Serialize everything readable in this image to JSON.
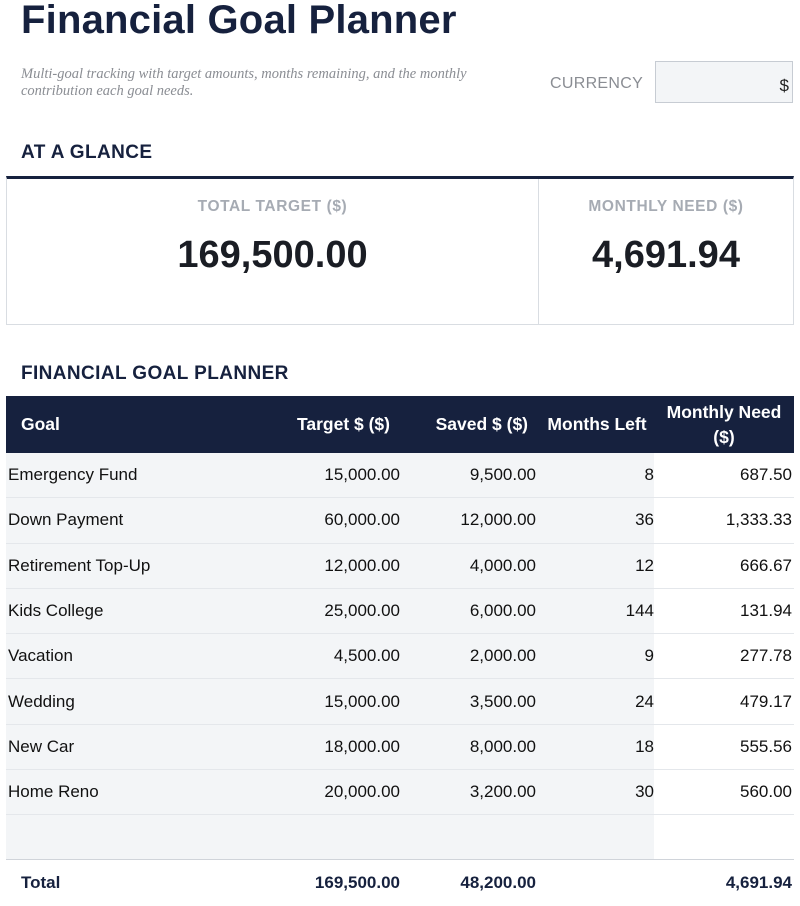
{
  "header": {
    "title": "Financial Goal Planner",
    "subtitle": "Multi-goal tracking with target amounts, months remaining, and the monthly contribution each goal needs.",
    "currency_label": "CURRENCY",
    "currency_value": "$"
  },
  "glance": {
    "section_title": "AT A GLANCE",
    "total_target_label": "TOTAL TARGET ($)",
    "total_target_value": "169,500.00",
    "monthly_need_label": "MONTHLY NEED ($)",
    "monthly_need_value": "4,691.94"
  },
  "planner": {
    "section_title": "FINANCIAL GOAL PLANNER",
    "columns": [
      "Goal",
      "Target $ ($)",
      "Saved $ ($)",
      "Months Left",
      "Monthly Need ($)"
    ],
    "rows": [
      [
        "Emergency Fund",
        "15,000.00",
        "9,500.00",
        "8",
        "687.50"
      ],
      [
        "Down Payment",
        "60,000.00",
        "12,000.00",
        "36",
        "1,333.33"
      ],
      [
        "Retirement Top-Up",
        "12,000.00",
        "4,000.00",
        "12",
        "666.67"
      ],
      [
        "Kids College",
        "25,000.00",
        "6,000.00",
        "144",
        "131.94"
      ],
      [
        "Vacation",
        "4,500.00",
        "2,000.00",
        "9",
        "277.78"
      ],
      [
        "Wedding",
        "15,000.00",
        "3,500.00",
        "24",
        "479.17"
      ],
      [
        "New Car",
        "18,000.00",
        "8,000.00",
        "18",
        "555.56"
      ],
      [
        "Home Reno",
        "20,000.00",
        "3,200.00",
        "30",
        "560.00"
      ]
    ],
    "total": [
      "Total",
      "169,500.00",
      "48,200.00",
      "",
      "4,691.94"
    ]
  },
  "colors": {
    "navy": "#16213e",
    "input_fill": "#f3f5f7",
    "muted_label": "#a6abb3"
  }
}
